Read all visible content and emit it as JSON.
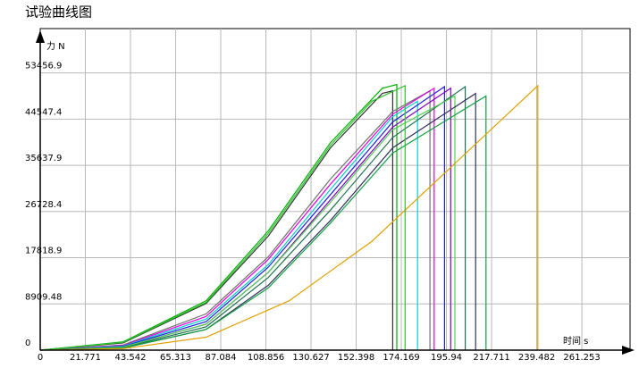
{
  "chart_data": {
    "type": "line",
    "title": "试验曲线图",
    "y_label": "力 N",
    "x_label": "时间 s",
    "xlim": [
      0,
      284.5
    ],
    "ylim": [
      0,
      62000
    ],
    "xticks": [
      0,
      21.771,
      43.542,
      65.313,
      87.084,
      108.856,
      130.627,
      152.398,
      174.169,
      195.94,
      217.711,
      239.482,
      261.253
    ],
    "yticks": [
      0,
      8909.48,
      17818.9,
      26728.4,
      35637.9,
      44547.4,
      53456.9
    ],
    "grid": true,
    "series": [
      {
        "color": "#00b000",
        "x": [
          0,
          40,
          80,
          110,
          140,
          165,
          172,
          172
        ],
        "values": [
          0,
          1600,
          9500,
          23000,
          40000,
          50500,
          51200,
          0
        ]
      },
      {
        "color": "#303030",
        "x": [
          0,
          40,
          80,
          110,
          140,
          165,
          170,
          170
        ],
        "values": [
          0,
          1400,
          9000,
          22000,
          39000,
          49500,
          50000,
          0
        ]
      },
      {
        "color": "#707070",
        "x": [
          0,
          40,
          80,
          110,
          140,
          170,
          188,
          188
        ],
        "values": [
          0,
          1000,
          7000,
          18000,
          33000,
          46000,
          50000,
          0
        ]
      },
      {
        "color": "#e000e0",
        "x": [
          0,
          40,
          80,
          110,
          140,
          170,
          190,
          190
        ],
        "values": [
          0,
          900,
          6500,
          17500,
          32000,
          45500,
          50500,
          0
        ]
      },
      {
        "color": "#00d0d0",
        "x": [
          0,
          40,
          80,
          110,
          140,
          170,
          182,
          182
        ],
        "values": [
          0,
          800,
          6000,
          16500,
          31000,
          45000,
          48000,
          0
        ]
      },
      {
        "color": "#2020e0",
        "x": [
          0,
          40,
          80,
          110,
          140,
          170,
          195,
          195
        ],
        "values": [
          0,
          700,
          5500,
          16000,
          30000,
          44000,
          50800,
          0
        ]
      },
      {
        "color": "#8000c0",
        "x": [
          0,
          40,
          80,
          110,
          140,
          170,
          198,
          198
        ],
        "values": [
          0,
          600,
          5000,
          15000,
          29000,
          43000,
          50500,
          0
        ]
      },
      {
        "color": "#207050",
        "x": [
          0,
          40,
          80,
          110,
          140,
          170,
          205,
          205
        ],
        "values": [
          0,
          500,
          4500,
          14000,
          27000,
          41000,
          50800,
          0
        ]
      },
      {
        "color": "#50d050",
        "x": [
          0,
          40,
          80,
          110,
          140,
          170,
          200,
          200
        ],
        "values": [
          0,
          600,
          5000,
          15000,
          28500,
          42500,
          49000,
          0
        ]
      },
      {
        "color": "#303060",
        "x": [
          0,
          40,
          80,
          110,
          140,
          170,
          210,
          210
        ],
        "values": [
          0,
          400,
          4000,
          12500,
          25000,
          39000,
          49500,
          0
        ]
      },
      {
        "color": "#10a040",
        "x": [
          0,
          40,
          80,
          110,
          140,
          170,
          215,
          215
        ],
        "values": [
          0,
          400,
          4000,
          12000,
          24500,
          38000,
          49000,
          0
        ]
      },
      {
        "color": "#e0a000",
        "x": [
          0,
          40,
          80,
          120,
          160,
          200,
          240,
          240
        ],
        "values": [
          0,
          300,
          2500,
          9500,
          21000,
          36000,
          51000,
          0
        ]
      },
      {
        "color": "#30c030",
        "x": [
          0,
          40,
          80,
          110,
          140,
          160,
          176,
          176
        ],
        "values": [
          0,
          1500,
          9200,
          22500,
          39500,
          48000,
          51000,
          0
        ]
      }
    ]
  }
}
